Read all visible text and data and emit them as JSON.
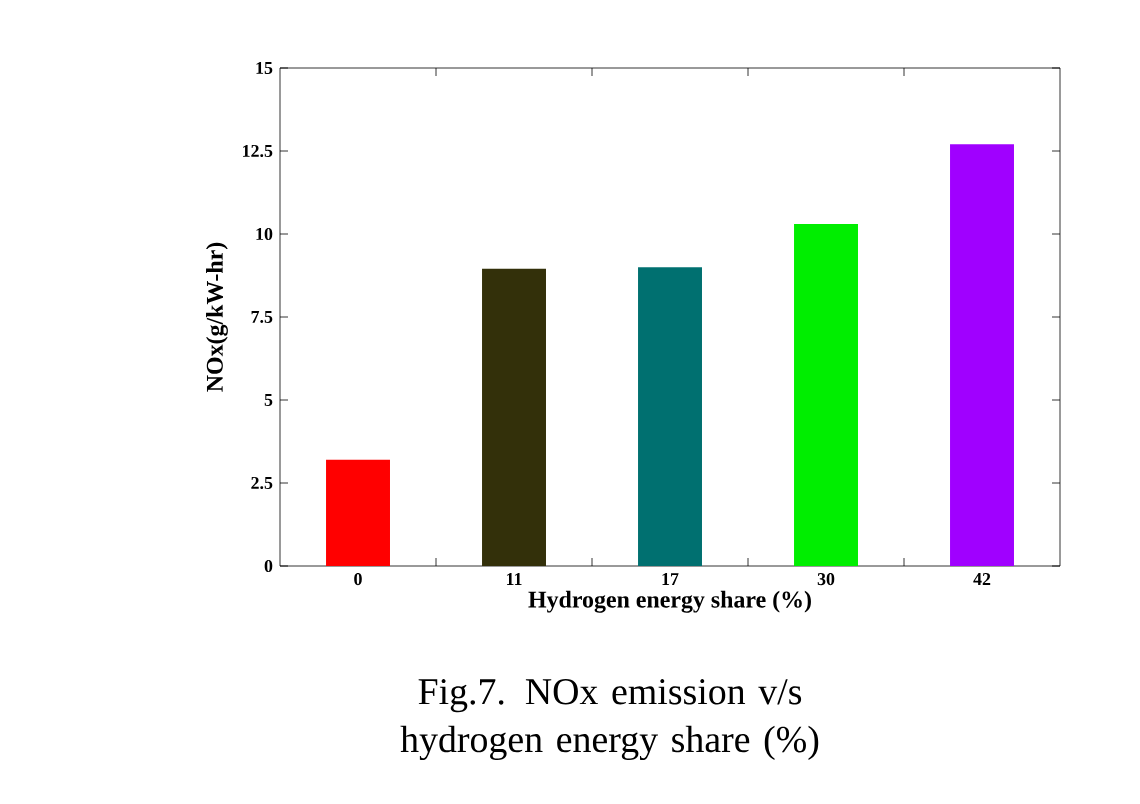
{
  "chart_data": {
    "type": "bar",
    "xlabel": "Hydrogen energy share (%)",
    "ylabel": "NOx(g/kW-hr)",
    "categories": [
      "0",
      "11",
      "17",
      "30",
      "42"
    ],
    "values": [
      3.2,
      8.95,
      9.0,
      10.3,
      12.7
    ],
    "colors": [
      "#ff0000",
      "#33300a",
      "#007070",
      "#00ee00",
      "#a000ff"
    ],
    "ylim": [
      0,
      15
    ],
    "yticks": [
      0,
      2.5,
      5,
      7.5,
      10,
      12.5,
      15
    ],
    "annotations": [
      "Fig.7. NOx emission v/s hydrogen energy share (%)"
    ]
  }
}
